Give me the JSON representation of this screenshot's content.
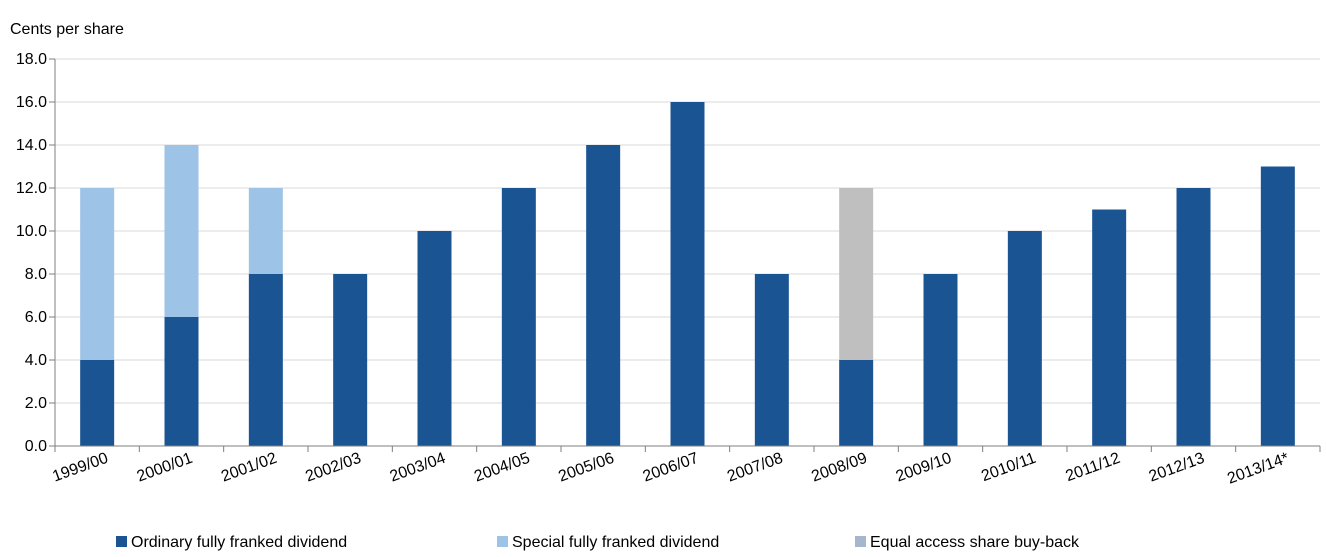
{
  "chart_data": {
    "type": "bar",
    "stacked": true,
    "ylabel": "Cents per share",
    "ylim": [
      0,
      18
    ],
    "yticks": [
      "0.0",
      "2.0",
      "4.0",
      "6.0",
      "8.0",
      "10.0",
      "12.0",
      "14.0",
      "16.0",
      "18.0"
    ],
    "grid": true,
    "legend_position": "bottom",
    "categories": [
      "1999/00",
      "2000/01",
      "2001/02",
      "2002/03",
      "2003/04",
      "2004/05",
      "2005/06",
      "2006/07",
      "2007/08",
      "2008/09",
      "2009/10",
      "2010/11",
      "2011/12",
      "2012/13",
      "2013/14*"
    ],
    "series": [
      {
        "name": "Ordinary fully franked dividend",
        "color": "#1b5493",
        "values": [
          4,
          6,
          8,
          8,
          10,
          12,
          14,
          16,
          8,
          4,
          8,
          10,
          11,
          12,
          13
        ]
      },
      {
        "name": "Special fully franked dividend",
        "color": "#9dc3e6",
        "values": [
          8,
          8,
          4,
          0,
          0,
          0,
          0,
          0,
          0,
          0,
          0,
          0,
          0,
          0,
          0
        ]
      },
      {
        "name": "Equal access share buy-back",
        "color": "#bfbfbf",
        "legend_color": "#a6b6cc",
        "values": [
          0,
          0,
          0,
          0,
          0,
          0,
          0,
          0,
          0,
          8,
          0,
          0,
          0,
          0,
          0
        ]
      }
    ]
  }
}
